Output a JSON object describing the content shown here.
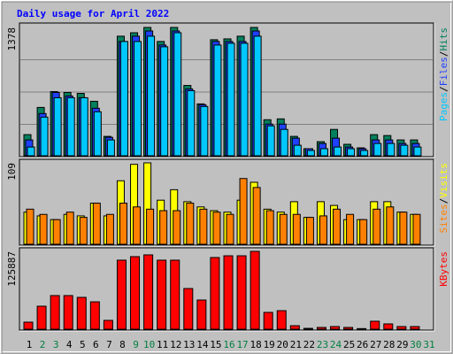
{
  "title": "Daily usage for April 2022",
  "categories": [
    "1",
    "2",
    "3",
    "4",
    "5",
    "6",
    "7",
    "8",
    "9",
    "10",
    "11",
    "12",
    "13",
    "14",
    "15",
    "16",
    "17",
    "18",
    "19",
    "20",
    "21",
    "22",
    "23",
    "24",
    "25",
    "26",
    "27",
    "28",
    "29",
    "30",
    "31"
  ],
  "category_colors": [
    "#000000",
    "#008040",
    "#008040",
    "#000000",
    "#000000",
    "#000000",
    "#000000",
    "#000000",
    "#008040",
    "#008040",
    "#000000",
    "#000000",
    "#000000",
    "#000000",
    "#000000",
    "#008040",
    "#008040",
    "#000000",
    "#000000",
    "#000000",
    "#000000",
    "#000000",
    "#008040",
    "#008040",
    "#000000",
    "#000000",
    "#000000",
    "#000000",
    "#000000",
    "#008040",
    "#008040"
  ],
  "legend_separator": "/",
  "chart_data": [
    {
      "type": "bar",
      "ylim": [
        0,
        1378
      ],
      "yticks": [
        1378
      ],
      "series": [
        {
          "name": "Hits",
          "color": "#00805c",
          "values": [
            227,
            519,
            689,
            680,
            670,
            585,
            208,
            1284,
            1321,
            1378,
            1227,
            1378,
            755,
            557,
            1246,
            1255,
            1284,
            1378,
            387,
            396,
            208,
            76,
            151,
            283,
            123,
            85,
            227,
            217,
            170,
            170,
            null
          ]
        },
        {
          "name": "Files",
          "color": "#2040ff",
          "values": [
            170,
            453,
            680,
            642,
            623,
            510,
            198,
            1227,
            1284,
            1340,
            1189,
            1340,
            717,
            548,
            1227,
            1227,
            1227,
            1340,
            340,
            340,
            189,
            76,
            132,
            189,
            94,
            76,
            170,
            170,
            132,
            132,
            null
          ]
        },
        {
          "name": "Pages",
          "color": "#00c8ff",
          "values": [
            94,
            415,
            623,
            623,
            623,
            472,
            170,
            1227,
            1227,
            1284,
            1170,
            1321,
            699,
            529,
            1189,
            1208,
            1208,
            1284,
            321,
            283,
            113,
            57,
            76,
            94,
            76,
            57,
            132,
            132,
            113,
            94,
            null
          ]
        }
      ]
    },
    {
      "type": "bar",
      "ylim": [
        0,
        109
      ],
      "yticks": [
        109
      ],
      "series": [
        {
          "name": "Visits",
          "color": "#ffff00",
          "values": [
            43,
            38,
            33,
            40,
            38,
            55,
            38,
            85,
            107,
            109,
            59,
            73,
            57,
            50,
            45,
            43,
            59,
            83,
            47,
            43,
            57,
            36,
            57,
            52,
            33,
            33,
            57,
            57,
            43,
            40,
            null
          ]
        },
        {
          "name": "Sites",
          "color": "#ff8000",
          "values": [
            47,
            40,
            33,
            43,
            36,
            55,
            40,
            55,
            50,
            47,
            45,
            45,
            55,
            47,
            43,
            40,
            88,
            76,
            45,
            40,
            40,
            36,
            38,
            47,
            40,
            33,
            47,
            50,
            43,
            40,
            null
          ]
        }
      ]
    },
    {
      "type": "bar",
      "ylim": [
        0,
        125887
      ],
      "yticks": [
        125887
      ],
      "series": [
        {
          "name": "KBytes",
          "color": "#ff0000",
          "values": [
            11444,
            37200,
            54400,
            54400,
            51500,
            44300,
            14300,
            111600,
            117300,
            120200,
            111600,
            111600,
            65800,
            47200,
            115900,
            118700,
            118700,
            125887,
            27200,
            30000,
            5700,
            1400,
            2900,
            4300,
            2900,
            1000,
            12900,
            8600,
            4300,
            4300,
            null
          ]
        }
      ]
    }
  ]
}
